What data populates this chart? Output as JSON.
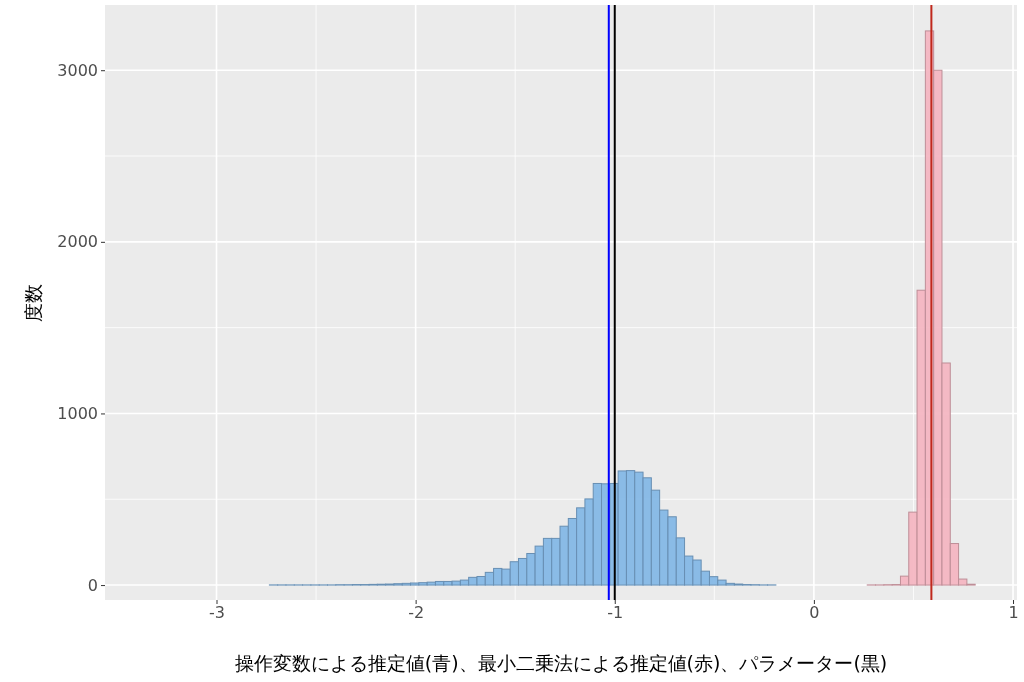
{
  "chart_data": {
    "type": "histogram",
    "xlabel": "操作変数による推定値(青)、最小二乗法による推定値(赤)、パラメーター(黒)",
    "ylabel": "度数",
    "bins": [
      -3.36,
      -3.3183,
      -3.2766,
      -3.2349,
      -3.1932,
      -3.1515,
      -3.1098,
      -3.0681,
      -3.0264,
      -2.9847,
      -2.943,
      -2.9013,
      -2.8596,
      -2.8179,
      -2.7762,
      -2.7345,
      -2.6928,
      -2.6511,
      -2.6094,
      -2.5677,
      -2.526,
      -2.4843,
      -2.4426,
      -2.4009,
      -2.3592,
      -2.3175,
      -2.2758,
      -2.2341,
      -2.1924,
      -2.1507,
      -2.109,
      -2.0673,
      -2.0256,
      -1.9839,
      -1.9422,
      -1.9005,
      -1.8588,
      -1.8171,
      -1.7754,
      -1.7337,
      -1.692,
      -1.6503,
      -1.6086,
      -1.5669,
      -1.5252,
      -1.4835,
      -1.4418,
      -1.4001,
      -1.3584,
      -1.3167,
      -1.275,
      -1.2333,
      -1.1916,
      -1.1499,
      -1.1082,
      -1.0665,
      -1.0248,
      -0.9831,
      -0.9414,
      -0.8997,
      -0.858,
      -0.8163,
      -0.7746,
      -0.7329,
      -0.6912,
      -0.6495,
      -0.6078,
      -0.5661,
      -0.5244,
      -0.4827,
      -0.441,
      -0.3993,
      -0.3576,
      -0.3159,
      -0.2742,
      -0.2325,
      -0.1908,
      -0.1491,
      -0.1074,
      -0.0657,
      -0.024,
      0.0177,
      0.0594,
      0.1011,
      0.1428,
      0.1845,
      0.2262,
      0.2679,
      0.3096,
      0.3513,
      0.393,
      0.4347,
      0.4764,
      0.5181,
      0.5598,
      0.6015,
      0.6432,
      0.6849,
      0.7266,
      0.7683,
      0.81
    ],
    "series": [
      {
        "color": "#85b8e6",
        "values": [
          0,
          0,
          0,
          0,
          0,
          0,
          0,
          0,
          0,
          0,
          0,
          0,
          0,
          0,
          0,
          1,
          1,
          1,
          1,
          1,
          1,
          1,
          1,
          2,
          2,
          3,
          3,
          4,
          5,
          6,
          8,
          10,
          12,
          14,
          17,
          21,
          21,
          23,
          29,
          45,
          50,
          74,
          97,
          93,
          136,
          155,
          184,
          227,
          272,
          272,
          343,
          388,
          450,
          502,
          592,
          590,
          592,
          665,
          667,
          658,
          625,
          553,
          437,
          398,
          275,
          169,
          146,
          81,
          49,
          29,
          10,
          6,
          3,
          2,
          1,
          1,
          0,
          0,
          0,
          0,
          0,
          0,
          0,
          0,
          0,
          0,
          0,
          0,
          0,
          0,
          0,
          0,
          0,
          0,
          0,
          0,
          0,
          0,
          0,
          0
        ]
      },
      {
        "color": "#f4b6c2",
        "values": [
          0,
          0,
          0,
          0,
          0,
          0,
          0,
          0,
          0,
          0,
          0,
          0,
          0,
          0,
          0,
          0,
          0,
          0,
          0,
          0,
          0,
          0,
          0,
          0,
          0,
          0,
          0,
          0,
          0,
          0,
          0,
          0,
          0,
          0,
          0,
          0,
          0,
          0,
          0,
          0,
          0,
          0,
          0,
          0,
          0,
          0,
          0,
          0,
          0,
          0,
          0,
          0,
          0,
          0,
          0,
          0,
          0,
          0,
          0,
          0,
          0,
          0,
          0,
          0,
          0,
          0,
          0,
          0,
          0,
          0,
          0,
          0,
          0,
          0,
          0,
          0,
          0,
          0,
          0,
          0,
          0,
          0,
          0,
          0,
          0,
          0,
          0,
          1,
          1,
          2,
          3,
          52,
          425,
          1718,
          3229,
          3000,
          1294,
          242,
          35,
          5
        ]
      }
    ],
    "ref_lines": [
      {
        "axis": "x",
        "value": -1.03,
        "color": "#0000ff"
      },
      {
        "axis": "x",
        "value": -1.0,
        "color": "#000000"
      },
      {
        "axis": "x",
        "value": 0.59,
        "color": "#c0281c"
      }
    ],
    "xlim": [
      -3.56,
      1.02
    ],
    "ylim": [
      -87,
      3380
    ],
    "xticks": [
      -3,
      -2,
      -1,
      0,
      1
    ],
    "yticks": [
      0,
      1000,
      2000,
      3000
    ],
    "grid": true,
    "legend": false
  }
}
